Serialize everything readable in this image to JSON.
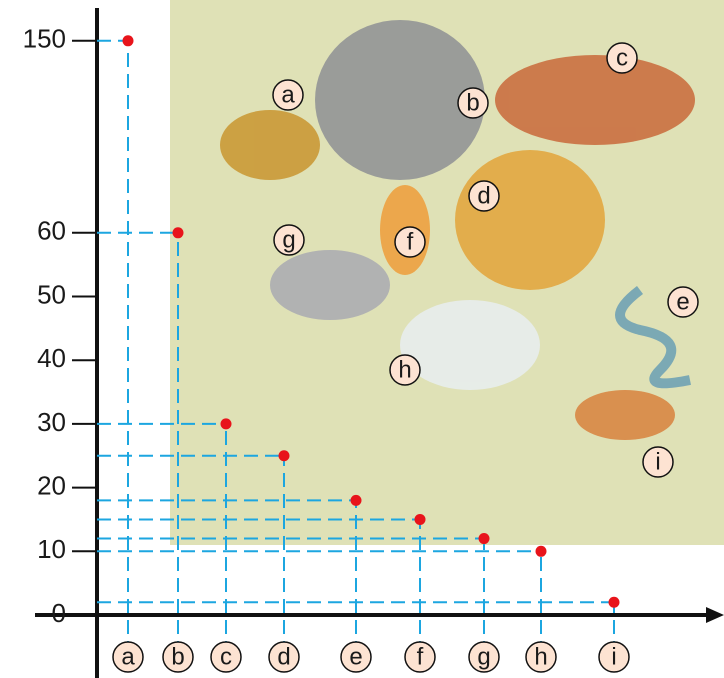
{
  "chart_data": {
    "type": "dot",
    "categories": [
      "a",
      "b",
      "c",
      "d",
      "e",
      "f",
      "g",
      "h",
      "i"
    ],
    "values": [
      150,
      60,
      30,
      25,
      18,
      15,
      12,
      10,
      2
    ],
    "color": "#e8141b",
    "guide_color": "#1ca6e0",
    "ylim": [
      0,
      150
    ],
    "yticks": [
      0,
      10,
      20,
      30,
      40,
      50,
      60,
      150
    ]
  }
}
